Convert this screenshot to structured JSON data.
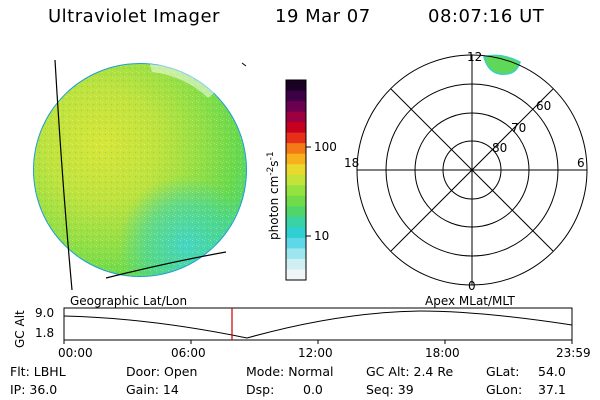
{
  "header": {
    "title": "Ultraviolet Imager",
    "date": "19 Mar 07",
    "time": "08:07:16 UT"
  },
  "colorbar": {
    "label_main": "photon cm",
    "label_exp1": "-2",
    "label_mid": "s",
    "label_exp2": "-1",
    "ticks": [
      "100",
      "10"
    ],
    "colors_top_to_bottom": [
      "#1a0022",
      "#3b0046",
      "#6a004f",
      "#9c0040",
      "#c8001f",
      "#e6301a",
      "#f47a18",
      "#f8b01c",
      "#e9d92c",
      "#c4e33a",
      "#94e23f",
      "#6fdb48",
      "#4fd56a",
      "#38d2a5",
      "#2fd0d2",
      "#5ed8e8",
      "#9de6f0",
      "#cfeff3",
      "#f0f6f7"
    ],
    "color_scale": "log"
  },
  "polar_grid": {
    "mlt_labels": {
      "top": "12",
      "bottom": "0",
      "left": "18",
      "right": "6"
    },
    "lat_labels": [
      "60",
      "70",
      "80"
    ]
  },
  "timeline": {
    "left_title": "Geographic Lat/Lon",
    "right_title": "Apex MLat/MLT",
    "y_axis_label": "GC Alt",
    "y_ticks": [
      "9.0",
      "1.8"
    ],
    "x_ticks": [
      "00:00",
      "06:00",
      "12:00",
      "18:00",
      "23:59"
    ],
    "current_marker_color": "#cc0000"
  },
  "footer": {
    "flt": "Flt: LBHL",
    "ip": "IP: 36.0",
    "door": "Door: Open",
    "gain": "Gain: 14",
    "mode": "Mode: Normal",
    "dsp": "Dsp:",
    "dsp_val": "0.0",
    "gcalt": "GC Alt: 2.4 Re",
    "seq": "Seq: 39",
    "glat": "GLat:",
    "glat_val": "54.0",
    "glon": "GLon:",
    "glon_val": "37.1"
  }
}
